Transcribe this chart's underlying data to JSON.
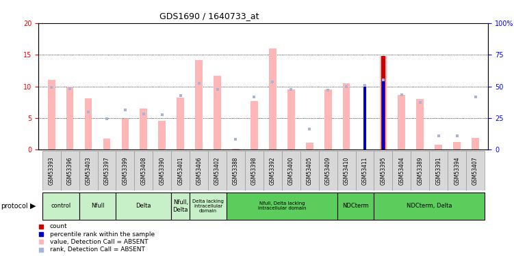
{
  "title": "GDS1690 / 1640733_at",
  "samples": [
    "GSM53393",
    "GSM53396",
    "GSM53403",
    "GSM53397",
    "GSM53399",
    "GSM53408",
    "GSM53390",
    "GSM53401",
    "GSM53406",
    "GSM53402",
    "GSM53388",
    "GSM53398",
    "GSM53392",
    "GSM53400",
    "GSM53405",
    "GSM53409",
    "GSM53410",
    "GSM53411",
    "GSM53395",
    "GSM53404",
    "GSM53389",
    "GSM53391",
    "GSM53394",
    "GSM53407"
  ],
  "values_absent": [
    11.0,
    10.0,
    8.1,
    1.8,
    4.9,
    6.5,
    4.6,
    8.2,
    14.2,
    11.7,
    0.2,
    7.7,
    16.0,
    9.5,
    1.1,
    9.5,
    10.5,
    0.0,
    14.8,
    8.7,
    8.0,
    0.8,
    1.2,
    1.9
  ],
  "rank_absent": [
    49.0,
    48.0,
    30.0,
    24.5,
    31.5,
    28.0,
    27.5,
    42.5,
    52.5,
    47.5,
    8.5,
    41.5,
    53.5,
    47.5,
    16.5,
    47.0,
    49.5,
    51.0,
    55.0,
    43.5,
    37.5,
    11.0,
    11.0,
    41.5
  ],
  "count_red_val": [
    0,
    0,
    0,
    0,
    0,
    0,
    0,
    0,
    0,
    0,
    0,
    0,
    0,
    0,
    0,
    0,
    0,
    0,
    14.8,
    0,
    0,
    0,
    0,
    0
  ],
  "rank_blue_pct": [
    0,
    0,
    0,
    0,
    0,
    0,
    0,
    0,
    0,
    0,
    0,
    0,
    0,
    0,
    0,
    0,
    0,
    51.0,
    55.0,
    0,
    0,
    0,
    0,
    0
  ],
  "groups": [
    {
      "label": "control",
      "start": 0,
      "end": 2,
      "light": true
    },
    {
      "label": "Nfull",
      "start": 2,
      "end": 4,
      "light": true
    },
    {
      "label": "Delta",
      "start": 4,
      "end": 7,
      "light": true
    },
    {
      "label": "Nfull,\nDelta",
      "start": 7,
      "end": 8,
      "light": true
    },
    {
      "label": "Delta lacking\nintracellular\ndomain",
      "start": 8,
      "end": 10,
      "light": true
    },
    {
      "label": "Nfull, Delta lacking\nintracellular domain",
      "start": 10,
      "end": 16,
      "light": false
    },
    {
      "label": "NDCterm",
      "start": 16,
      "end": 18,
      "light": false
    },
    {
      "label": "NDCterm, Delta",
      "start": 18,
      "end": 24,
      "light": false
    }
  ],
  "ylim_left": [
    0,
    20
  ],
  "ylim_right": [
    0,
    100
  ],
  "yticks_left": [
    0,
    5,
    10,
    15,
    20
  ],
  "yticks_right": [
    0,
    25,
    50,
    75,
    100
  ],
  "absent_color": "#ffb6b6",
  "rank_absent_color": "#aab4d8",
  "count_color": "#cc0000",
  "rank_color": "#0000cc",
  "light_green": "#c8f0c8",
  "dark_green": "#5ccc5c",
  "bg_color": "#ffffff",
  "label_bg": "#d8d8d8"
}
